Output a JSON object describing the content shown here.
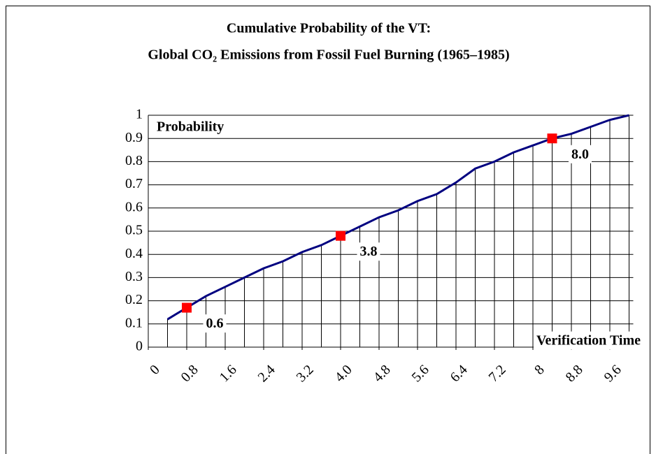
{
  "chart_data": {
    "type": "line",
    "title": "Cumulative Probability of the VT:",
    "subtitle": "Global CO₂ Emissions from Fossil Fuel Burning (1965–1985)",
    "y_label": "Probability",
    "x_label": "Verification Time",
    "x": [
      0.4,
      0.8,
      1.2,
      1.6,
      2.0,
      2.4,
      2.8,
      3.2,
      3.6,
      4.0,
      4.4,
      4.8,
      5.2,
      5.6,
      6.0,
      6.4,
      6.8,
      7.2,
      7.6,
      8.0,
      8.4,
      8.8,
      9.2,
      9.6,
      10.0
    ],
    "values": [
      0.12,
      0.17,
      0.22,
      0.26,
      0.3,
      0.34,
      0.37,
      0.41,
      0.44,
      0.48,
      0.52,
      0.56,
      0.59,
      0.63,
      0.66,
      0.71,
      0.77,
      0.8,
      0.84,
      0.87,
      0.9,
      0.92,
      0.95,
      0.98,
      1.0
    ],
    "color": "#000080",
    "drop_lines": true,
    "annotations": [
      {
        "text": "0.6",
        "x": 0.8,
        "y": 0.17,
        "color": "#ff0000"
      },
      {
        "text": "3.8",
        "x": 4.0,
        "y": 0.48,
        "color": "#ff0000"
      },
      {
        "text": "8.0",
        "x": 8.4,
        "y": 0.9,
        "color": "#ff0000"
      }
    ],
    "xlim": [
      0,
      10
    ],
    "xticks": [
      0,
      0.8,
      1.6,
      2.4,
      3.2,
      {
        "value": 4,
        "label": "4.0"
      },
      4.8,
      5.6,
      6.4,
      7.2,
      8,
      8.8,
      9.6
    ],
    "ylim": [
      0,
      1
    ],
    "yticks": [
      0,
      0.1,
      0.2,
      0.3,
      0.4,
      0.5,
      0.6,
      0.7,
      0.8,
      0.9,
      1
    ],
    "grid": true
  }
}
